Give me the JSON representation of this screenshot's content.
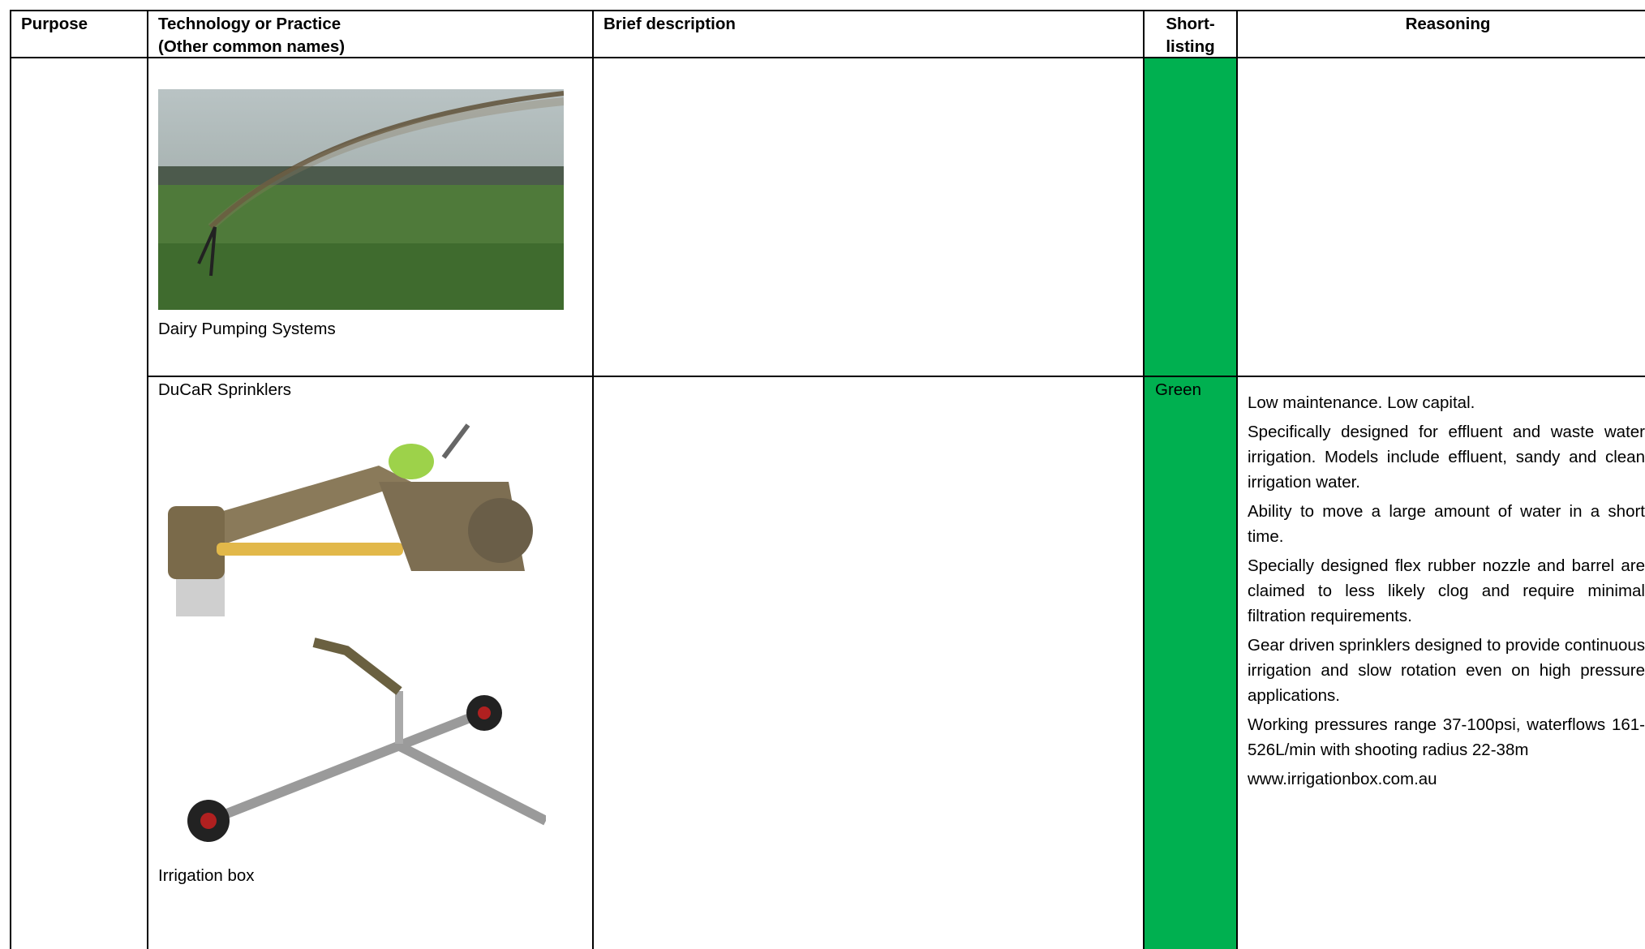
{
  "table": {
    "header": [
      "Purpose",
      "Technology or Practice\n(Other common names)",
      "Brief description",
      "Short-\nlisting",
      "Reasoning"
    ],
    "rows": [
      {
        "technology": {
          "caption": "Dairy Pumping Systems"
        }
      },
      {
        "technology": {
          "title": "DuCaR Sprinklers",
          "caption": "Irrigation box"
        },
        "shortlisting": "Green",
        "reasoning": [
          "Low maintenance. Low capital.",
          "Specifically designed for effluent and waste water irrigation.  Models include effluent, sandy and clean irrigation water.",
          "Ability to move a large amount of water in a short time.",
          "Specially designed flex rubber nozzle and barrel are claimed to less likely clog and require minimal filtration requirements.",
          "Gear driven sprinklers designed to provide continuous irrigation and slow rotation even on high pressure applications.",
          "Working pressures range 37-100psi, waterflows 161-526L/min with shooting radius 22-38m",
          "www.irrigationbox.com.au"
        ]
      }
    ]
  }
}
